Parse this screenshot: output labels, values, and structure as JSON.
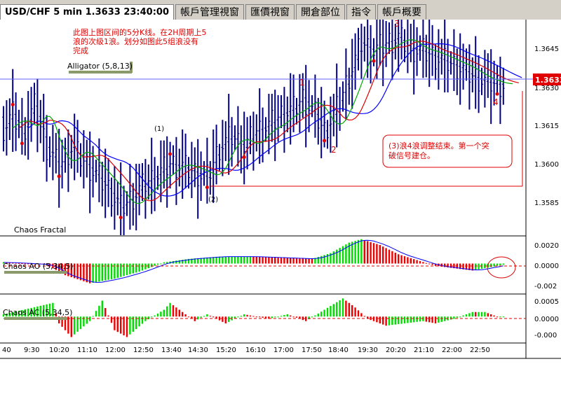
{
  "tabs": [
    {
      "label": "USD/CHF 5 min 1.3633 23:40:00",
      "active": true
    },
    {
      "label": "帳戶管理視窗",
      "active": false
    },
    {
      "label": "匯價視窗",
      "active": false
    },
    {
      "label": "開倉部位",
      "active": false
    },
    {
      "label": "指令",
      "active": false
    },
    {
      "label": "帳戶概要",
      "active": false
    }
  ],
  "annotations": {
    "note_top": [
      "此图上图区间的5分K线。在2H周期上5",
      "浪的次级1浪。划分如图此5组浪没有",
      "完成"
    ],
    "note_box": [
      "(3)浪4浪调整结束。第一个突",
      "破信号建仓。"
    ],
    "wave_1": "1",
    "wave_2": "2",
    "wave_3": "3",
    "wave_4": "4",
    "wave_sub_1": "(1)",
    "wave_sub_2": "(2)",
    "alligator_label": "Alligator (5,8,13)",
    "fractal_label": "Chaos Fractal",
    "ao_label": "Chaos AO (5,34,5)",
    "ac_label": "Chaos AC (5,34,5)"
  },
  "colors": {
    "up_bar": "#00dd00",
    "down_bar": "#ee0000",
    "price_bar": "#000080",
    "ma_blue": "#0000ff",
    "ma_red": "#e00000",
    "ma_green": "#00aa00",
    "annotation": "#e00000",
    "price_tag": "#e00000"
  },
  "chart_data": [
    {
      "type": "line",
      "title": "USD/CHF 5 min",
      "y_ticks": [
        "1.3645",
        "1.3630",
        "1.3615",
        "1.3600",
        "1.3585"
      ],
      "ylim": [
        1.3578,
        1.3656
      ],
      "current_price": "1.3633",
      "x_ticks": [
        "40",
        "9:30",
        "10:20",
        "11:10",
        "12:00",
        "12:50",
        "13:40",
        "14:30",
        "15:20",
        "16:10",
        "17:00",
        "17:50",
        "18:40",
        "19:30",
        "20:20",
        "21:10",
        "22:00",
        "22:50"
      ],
      "series": [
        {
          "name": "Price",
          "anchors": [
            [
              0,
              1.3617
            ],
            [
              3,
              1.3622
            ],
            [
              6,
              1.3615
            ],
            [
              10,
              1.3625
            ],
            [
              14,
              1.361
            ],
            [
              18,
              1.3603
            ],
            [
              22,
              1.361
            ],
            [
              26,
              1.3605
            ],
            [
              30,
              1.36
            ],
            [
              34,
              1.3595
            ],
            [
              38,
              1.3588
            ],
            [
              42,
              1.3592
            ],
            [
              46,
              1.3597
            ],
            [
              50,
              1.36
            ],
            [
              54,
              1.3604
            ],
            [
              58,
              1.3603
            ],
            [
              62,
              1.3601
            ],
            [
              66,
              1.3599
            ],
            [
              70,
              1.361
            ],
            [
              74,
              1.3614
            ],
            [
              78,
              1.361
            ],
            [
              82,
              1.3616
            ],
            [
              86,
              1.3618
            ],
            [
              90,
              1.3622
            ],
            [
              94,
              1.3624
            ],
            [
              97,
              1.3628
            ],
            [
              101,
              1.3622
            ],
            [
              104,
              1.3616
            ],
            [
              108,
              1.3624
            ],
            [
              112,
              1.3636
            ],
            [
              116,
              1.3648
            ],
            [
              120,
              1.3645
            ],
            [
              124,
              1.3648
            ],
            [
              128,
              1.365
            ],
            [
              132,
              1.3646
            ],
            [
              136,
              1.3645
            ],
            [
              140,
              1.3643
            ],
            [
              144,
              1.3641
            ],
            [
              148,
              1.3639
            ],
            [
              152,
              1.3636
            ],
            [
              156,
              1.3634
            ],
            [
              160,
              1.3633
            ],
            [
              162,
              1.3633
            ]
          ]
        }
      ]
    },
    {
      "type": "bar",
      "title": "Chaos AO (5,34,5)",
      "y_ticks": [
        "0.0020",
        "0.0000",
        "-0.002"
      ],
      "ylim": [
        -0.0025,
        0.0022
      ],
      "anchors": [
        [
          0,
          0.0001
        ],
        [
          8,
          0.0
        ],
        [
          14,
          -0.0001
        ],
        [
          20,
          -0.001
        ],
        [
          28,
          -0.0017
        ],
        [
          36,
          -0.0013
        ],
        [
          44,
          -0.0007
        ],
        [
          52,
          0.0001
        ],
        [
          60,
          0.0004
        ],
        [
          70,
          0.0006
        ],
        [
          80,
          0.0006
        ],
        [
          90,
          0.0005
        ],
        [
          100,
          0.0004
        ],
        [
          106,
          0.0009
        ],
        [
          112,
          0.0018
        ],
        [
          116,
          0.0021
        ],
        [
          122,
          0.0016
        ],
        [
          128,
          0.0008
        ],
        [
          134,
          0.0003
        ],
        [
          140,
          -0.0002
        ],
        [
          146,
          -0.0004
        ],
        [
          152,
          -0.0006
        ],
        [
          158,
          -0.0003
        ],
        [
          162,
          -0.0001
        ]
      ]
    },
    {
      "type": "bar",
      "title": "Chaos AC (5,34,5)",
      "y_ticks": [
        "0.0005",
        "0.0000",
        "-0.000"
      ],
      "ylim": [
        -0.0011,
        0.0009
      ],
      "anchors": [
        [
          0,
          0.0001
        ],
        [
          16,
          0.0006
        ],
        [
          18,
          -0.0003
        ],
        [
          22,
          -0.0009
        ],
        [
          28,
          -0.0002
        ],
        [
          32,
          0.0007
        ],
        [
          36,
          -0.0006
        ],
        [
          40,
          -0.0009
        ],
        [
          46,
          -0.0002
        ],
        [
          52,
          0.0003
        ],
        [
          54,
          0.0006
        ],
        [
          58,
          0.0002
        ],
        [
          62,
          -0.0002
        ],
        [
          66,
          0.0001
        ],
        [
          72,
          -0.0003
        ],
        [
          78,
          0.0001
        ],
        [
          86,
          -0.0001
        ],
        [
          92,
          0.0001
        ],
        [
          98,
          -0.0002
        ],
        [
          104,
          0.0003
        ],
        [
          110,
          0.0008
        ],
        [
          114,
          0.0004
        ],
        [
          118,
          -0.0001
        ],
        [
          124,
          -0.0004
        ],
        [
          130,
          -0.0003
        ],
        [
          136,
          -0.0002
        ],
        [
          140,
          -0.0003
        ],
        [
          146,
          -0.0001
        ],
        [
          152,
          0.0002
        ],
        [
          156,
          0.0002
        ],
        [
          160,
          0.0
        ],
        [
          162,
          0.0
        ]
      ]
    }
  ]
}
